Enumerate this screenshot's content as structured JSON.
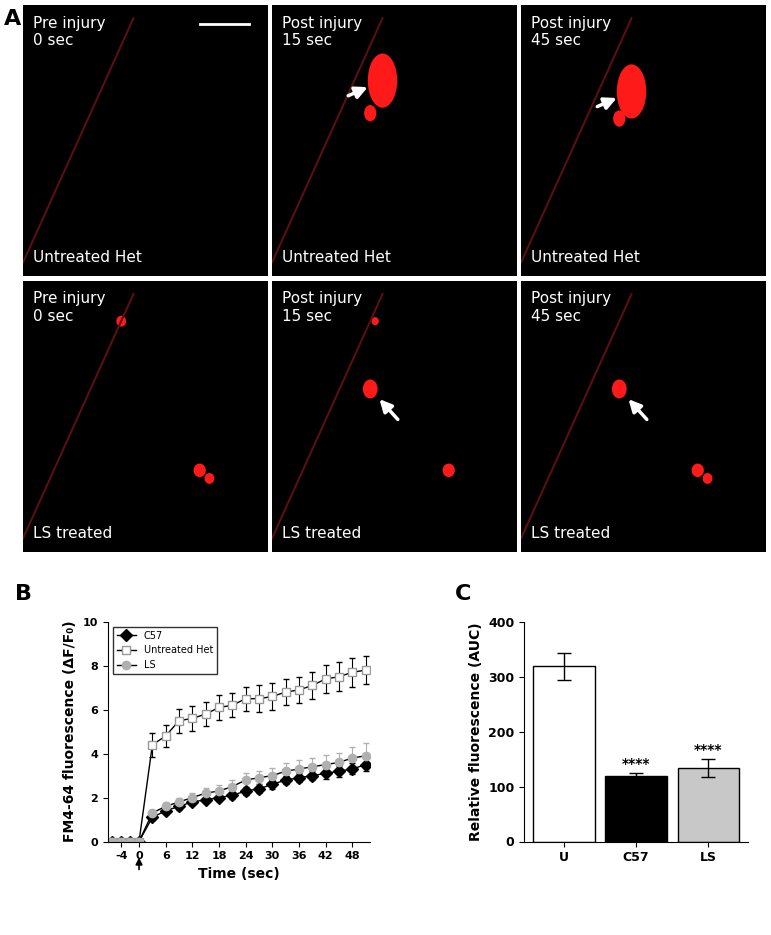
{
  "panels": {
    "letters": [
      "A",
      "B",
      "C"
    ],
    "images": [
      {
        "top": [
          "Pre injury",
          "0 sec"
        ],
        "bottom": "Untreated Het"
      },
      {
        "top": [
          "Post injury",
          "15 sec"
        ],
        "bottom": "Untreated Het"
      },
      {
        "top": [
          "Post injury",
          "45 sec"
        ],
        "bottom": "Untreated Het"
      },
      {
        "top": [
          "Pre injury",
          "0 sec"
        ],
        "bottom": "LS treated"
      },
      {
        "top": [
          "Post injury",
          "15 sec"
        ],
        "bottom": "LS treated"
      },
      {
        "top": [
          "Post injury",
          "45 sec"
        ],
        "bottom": "LS treated"
      }
    ]
  },
  "chart_data": [
    {
      "type": "line",
      "x_label": "Time (sec)",
      "y_label": "FM4-64 fluorescence (ΔF/F₀)",
      "x": [
        -6,
        -4,
        -2,
        0,
        3,
        6,
        9,
        12,
        15,
        18,
        21,
        24,
        27,
        30,
        33,
        36,
        39,
        42,
        45,
        48,
        51
      ],
      "xlim": [
        -7,
        52
      ],
      "xticks": [
        -4,
        0,
        6,
        12,
        18,
        24,
        30,
        36,
        42,
        48
      ],
      "ylim": [
        0,
        10
      ],
      "yticks": [
        0,
        2,
        4,
        6,
        8,
        10
      ],
      "legend": "upper left",
      "grid": false,
      "series": [
        {
          "name": "C57",
          "color": "#000000",
          "marker": "diamond",
          "values": [
            0,
            0,
            0,
            0,
            1.1,
            1.4,
            1.6,
            1.8,
            1.9,
            2.0,
            2.1,
            2.3,
            2.4,
            2.6,
            2.8,
            2.9,
            3.0,
            3.1,
            3.2,
            3.3,
            3.5
          ],
          "errors": [
            0,
            0,
            0,
            0,
            0.1,
            0.15,
            0.15,
            0.15,
            0.15,
            0.15,
            0.15,
            0.2,
            0.2,
            0.2,
            0.2,
            0.2,
            0.2,
            0.25,
            0.25,
            0.25,
            0.3
          ]
        },
        {
          "name": "Untreated Het",
          "color": "#999999",
          "marker": "open_square",
          "values": [
            0,
            0,
            0,
            0,
            4.4,
            4.8,
            5.5,
            5.6,
            5.8,
            6.1,
            6.2,
            6.5,
            6.5,
            6.6,
            6.8,
            6.9,
            7.1,
            7.4,
            7.5,
            7.7,
            7.8
          ],
          "errors": [
            0,
            0,
            0,
            0,
            0.55,
            0.5,
            0.55,
            0.55,
            0.55,
            0.55,
            0.55,
            0.55,
            0.6,
            0.6,
            0.6,
            0.6,
            0.6,
            0.65,
            0.65,
            0.65,
            0.65
          ]
        },
        {
          "name": "LS",
          "color": "#b0b0b0",
          "marker": "circle",
          "values": [
            0,
            0,
            0,
            0,
            1.3,
            1.6,
            1.8,
            2.0,
            2.2,
            2.3,
            2.5,
            2.8,
            2.9,
            3.0,
            3.2,
            3.3,
            3.4,
            3.5,
            3.6,
            3.8,
            3.9
          ],
          "errors": [
            0,
            0,
            0,
            0,
            0.15,
            0.2,
            0.2,
            0.2,
            0.25,
            0.25,
            0.3,
            0.3,
            0.3,
            0.35,
            0.35,
            0.4,
            0.4,
            0.45,
            0.45,
            0.5,
            0.6
          ]
        }
      ]
    },
    {
      "type": "bar",
      "y_label": "Relative fluorescence (AUC)",
      "categories": [
        "U",
        "C57",
        "LS"
      ],
      "values": [
        319,
        120,
        134
      ],
      "errors": [
        25,
        5,
        17
      ],
      "colors": [
        "#ffffff",
        "#000000",
        "#c8c8c8"
      ],
      "ylim": [
        0,
        400
      ],
      "yticks": [
        0,
        100,
        200,
        300,
        400
      ],
      "grid": false,
      "annotations": [
        {
          "category": "C57",
          "text": "****"
        },
        {
          "category": "LS",
          "text": "****"
        }
      ]
    }
  ]
}
